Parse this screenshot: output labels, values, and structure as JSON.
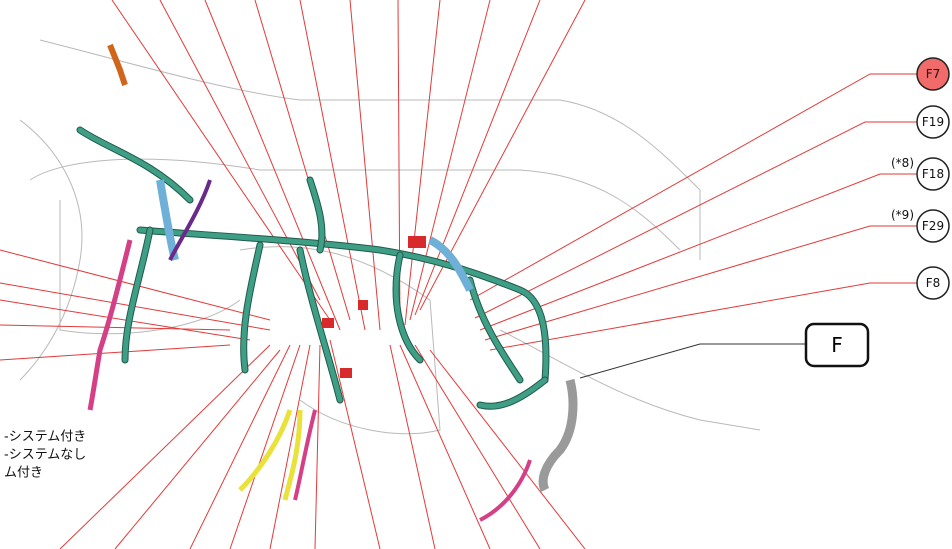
{
  "connectors": [
    {
      "label": "F7"
    },
    {
      "label": "F19"
    },
    {
      "label": "F18",
      "note": "(*8)"
    },
    {
      "label": "F29",
      "note": "(*9)"
    },
    {
      "label": "F8"
    }
  ],
  "location_label": "F",
  "legend": [
    "-システム付き",
    "-システムなし",
    "ム付き"
  ]
}
